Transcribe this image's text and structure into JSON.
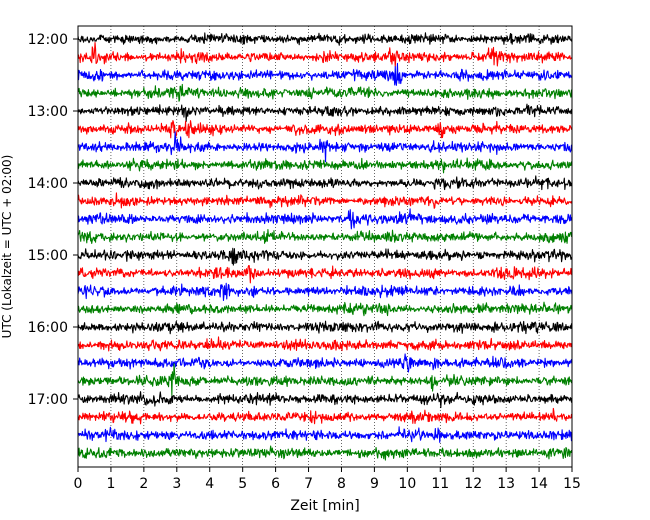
{
  "chart_data": {
    "type": "line",
    "title": "",
    "xlabel": "Zeit  [min]",
    "ylabel": "UTC (Lokalzeit = UTC + 02:00)",
    "xlim": [
      0,
      15
    ],
    "x_ticks": [
      0,
      1,
      2,
      3,
      4,
      5,
      6,
      7,
      8,
      9,
      10,
      11,
      12,
      13,
      14,
      15
    ],
    "y_tick_labels": [
      "12:00",
      "13:00",
      "14:00",
      "15:00",
      "16:00",
      "17:00"
    ],
    "trace_start_times": [
      "12:00",
      "12:15",
      "12:30",
      "12:45",
      "13:00",
      "13:15",
      "13:30",
      "13:45",
      "14:00",
      "14:15",
      "14:30",
      "14:45",
      "15:00",
      "15:15",
      "15:30",
      "15:45",
      "16:00",
      "16:15",
      "16:30",
      "16:45",
      "17:00",
      "17:15",
      "17:30",
      "17:45"
    ],
    "trace_colors": [
      "#000000",
      "#ff0000",
      "#0000ff",
      "#008000"
    ],
    "vertical_grid": true,
    "grid_style": "dotted"
  }
}
